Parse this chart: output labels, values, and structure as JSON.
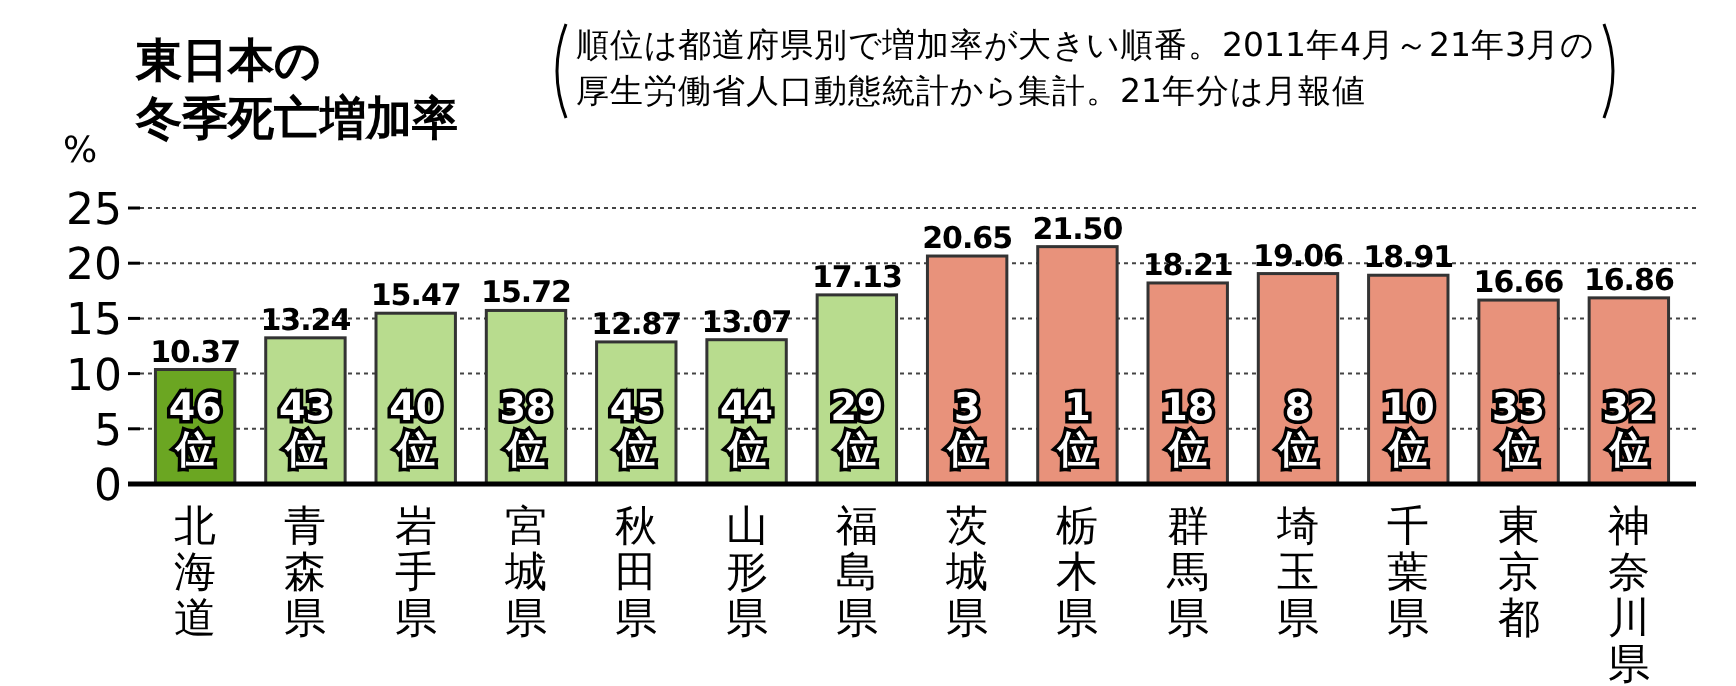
{
  "chart_data": {
    "type": "bar",
    "title": "東日本の冬季死亡増加率",
    "subtitle": "順位は都道府県別で増加率が大きい順番。2011年4月～21年3月の厚生労働省人口動態統計から集計。21年分は月報値",
    "ylabel": "%",
    "categories": [
      "北海道",
      "青森県",
      "岩手県",
      "宮城県",
      "秋田県",
      "山形県",
      "福島県",
      "茨城県",
      "栃木県",
      "群馬県",
      "埼玉県",
      "千葉県",
      "東京都",
      "神奈川県"
    ],
    "values": [
      10.37,
      13.24,
      15.47,
      15.72,
      12.87,
      13.07,
      17.13,
      20.65,
      21.5,
      18.21,
      19.06,
      18.91,
      16.66,
      16.86
    ],
    "value_labels": [
      "10.37",
      "13.24",
      "15.47",
      "15.72",
      "12.87",
      "13.07",
      "17.13",
      "20.65",
      "21.50",
      "18.21",
      "19.06",
      "18.91",
      "16.66",
      "16.86"
    ],
    "colors": [
      "#6ba622",
      "#b8dc8e",
      "#b8dc8e",
      "#b8dc8e",
      "#b8dc8e",
      "#b8dc8e",
      "#b8dc8e",
      "#e8927b",
      "#e8927b",
      "#e8927b",
      "#e8927b",
      "#e8927b",
      "#e8927b",
      "#e8927b"
    ],
    "annotations": [
      "46位",
      "43位",
      "40位",
      "38位",
      "45位",
      "44位",
      "29位",
      "3位",
      "1位",
      "18位",
      "8位",
      "10位",
      "33位",
      "32位"
    ],
    "ylim": [
      0,
      25
    ],
    "yticks": [
      0,
      5,
      10,
      15,
      20,
      25
    ],
    "grid": "y"
  }
}
